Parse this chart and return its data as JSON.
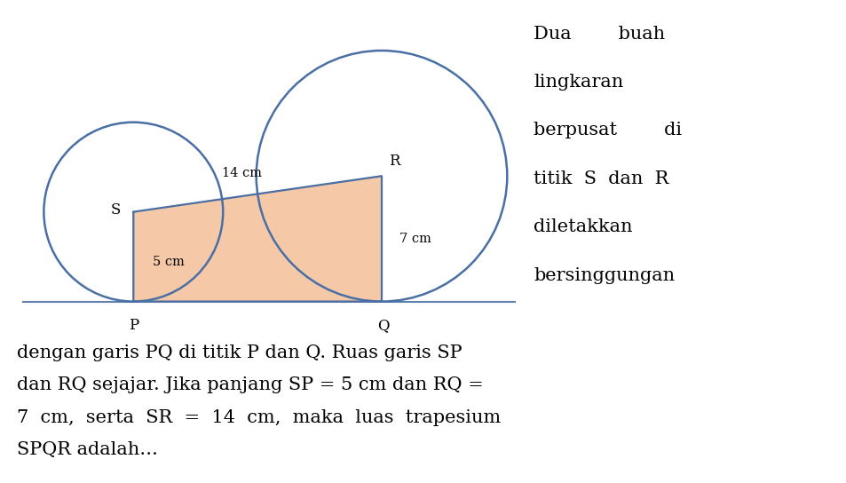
{
  "SP": 5,
  "RQ": 7,
  "SR": 14,
  "circle_color": "#4a6fa5",
  "circle_linewidth": 1.8,
  "trapezoid_fill": "#f5c9a8",
  "trapezoid_edge": "#4a6fa5",
  "line_color": "#6080b0",
  "line_linewidth": 1.5,
  "text_color": "#000000",
  "bg_color": "#ffffff",
  "right_text": [
    "Dua        buah",
    "lingkaran",
    "berpusat        di",
    "titik  S  dan  R",
    "diletakkan",
    "bersinggungan"
  ],
  "bottom_text": [
    "dengan garis PQ di titik P dan Q. Ruas garis SP",
    "dan RQ sejajar. Jika panjang SP = 5 cm dan RQ =",
    "7  cm,  serta  SR  =  14  cm,  maka  luas  trapesium",
    "SPQR adalah…"
  ],
  "fig_width": 9.54,
  "fig_height": 5.44,
  "dpi": 100
}
